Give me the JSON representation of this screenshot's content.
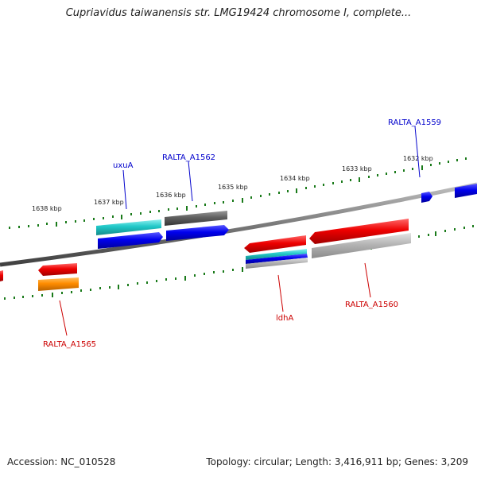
{
  "title": "Cupriavidus taiwanensis str. LMG19424 chromosome I, complete...",
  "footer": {
    "accession": "Accession: NC_010528",
    "topology": "Topology: circular; Length: 3,416,911 bp; Genes: 3,209"
  },
  "tick_labels": [
    "1638 kbp",
    "1637 kbp",
    "1636 kbp",
    "1635 kbp",
    "1634 kbp",
    "1633 kbp",
    "1632 kbp"
  ],
  "gene_labels": {
    "uxuA": "uxuA",
    "ralta_a1562": "RALTA_A1562",
    "ralta_a1559": "RALTA_A1559",
    "ralta_a1565": "RALTA_A1565",
    "ldhA": "ldhA",
    "ralta_a1560": "RALTA_A1560"
  },
  "colors": {
    "backbone": "#808080",
    "tick": "#1a7a1a",
    "forward_gene": "#0000ee",
    "reverse_gene": "#ee0000",
    "cyan": "#20c8c8",
    "gray": "#606060",
    "light_gray": "#b4b4b4",
    "orange": "#ff8c00",
    "label_blue": "#0000cc",
    "label_red": "#cc0000"
  }
}
